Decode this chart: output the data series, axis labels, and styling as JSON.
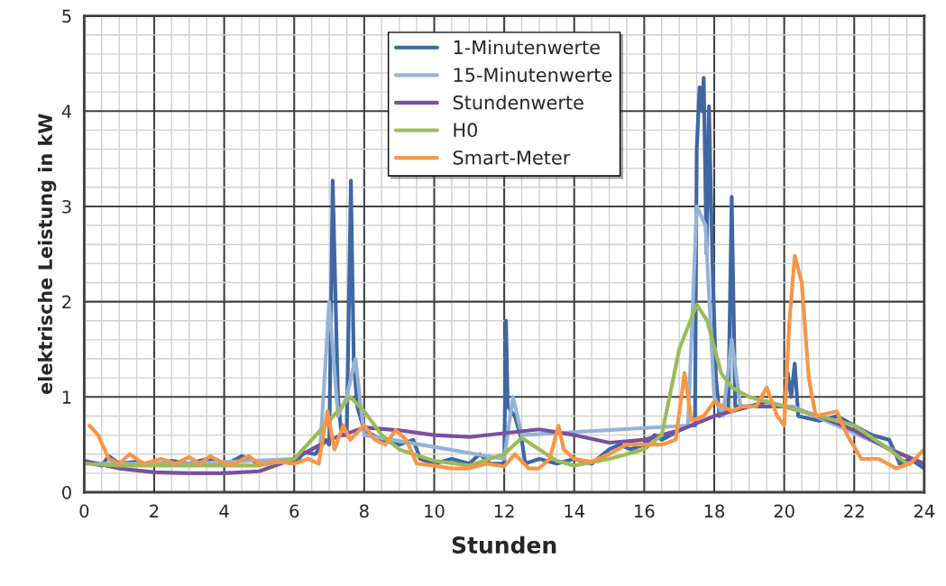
{
  "chart_data": {
    "type": "line",
    "xlabel": "Stunden",
    "ylabel": "elektrische Leistung in kW",
    "xlim": [
      0,
      24
    ],
    "ylim": [
      0,
      5
    ],
    "xticks": [
      0,
      2,
      4,
      6,
      8,
      10,
      12,
      14,
      16,
      18,
      20,
      22,
      24
    ],
    "yticks": [
      0,
      1,
      2,
      3,
      4,
      5
    ],
    "grid": true,
    "legend": "top",
    "line_style": "solid",
    "marker": "none",
    "series": [
      {
        "name": "1-Minutenwerte",
        "color": "#3f67a3",
        "x": [
          0.2,
          0.5,
          0.7,
          1.0,
          1.5,
          2.0,
          2.5,
          3.0,
          3.5,
          4.0,
          4.5,
          5.0,
          5.5,
          6.0,
          6.3,
          6.6,
          6.9,
          7.0,
          7.1,
          7.15,
          7.25,
          7.35,
          7.5,
          7.62,
          7.7,
          7.8,
          8.0,
          8.5,
          9.0,
          9.4,
          9.6,
          10.0,
          10.5,
          11.0,
          11.3,
          11.6,
          12.0,
          12.05,
          12.1,
          12.3,
          12.5,
          12.6,
          13.0,
          13.5,
          14.0,
          14.5,
          15.0,
          15.3,
          15.6,
          16.0,
          16.3,
          16.5,
          17.0,
          17.3,
          17.45,
          17.5,
          17.58,
          17.65,
          17.7,
          17.78,
          17.85,
          17.95,
          18.05,
          18.15,
          18.4,
          18.5,
          18.6,
          19.0,
          19.5,
          20.0,
          20.1,
          20.2,
          20.3,
          20.4,
          21.0,
          21.5,
          22.0,
          22.5,
          23.0,
          23.3,
          23.6,
          24.0
        ],
        "values": [
          0.3,
          0.28,
          0.38,
          0.3,
          0.32,
          0.28,
          0.33,
          0.3,
          0.35,
          0.28,
          0.38,
          0.3,
          0.33,
          0.3,
          0.42,
          0.4,
          0.55,
          0.5,
          3.27,
          2.5,
          1.0,
          0.6,
          0.6,
          3.27,
          1.4,
          0.9,
          0.65,
          0.55,
          0.5,
          0.55,
          0.35,
          0.3,
          0.35,
          0.3,
          0.4,
          0.3,
          0.3,
          1.8,
          0.9,
          0.8,
          0.55,
          0.3,
          0.35,
          0.3,
          0.35,
          0.3,
          0.45,
          0.5,
          0.45,
          0.5,
          0.6,
          0.55,
          0.65,
          0.7,
          0.7,
          3.6,
          4.25,
          4.0,
          4.35,
          2.5,
          4.05,
          2.4,
          1.2,
          0.8,
          0.85,
          3.1,
          0.9,
          0.9,
          0.95,
          0.9,
          1.25,
          1.0,
          1.35,
          0.8,
          0.75,
          0.8,
          0.7,
          0.6,
          0.55,
          0.3,
          0.35,
          0.25
        ]
      },
      {
        "name": "15-Minutenwerte",
        "color": "#95b3d7",
        "x": [
          0.25,
          3.0,
          6.0,
          6.75,
          7.0,
          7.25,
          7.5,
          7.75,
          8.0,
          12.0,
          12.25,
          12.5,
          17.25,
          17.5,
          17.75,
          18.0,
          18.25,
          18.5,
          18.75,
          20.25,
          24.0
        ],
        "values": [
          0.3,
          0.3,
          0.35,
          0.5,
          2.0,
          0.8,
          1.0,
          1.4,
          0.6,
          0.35,
          1.0,
          0.6,
          0.7,
          3.0,
          2.8,
          1.0,
          0.8,
          1.6,
          0.9,
          0.9,
          0.3
        ]
      },
      {
        "name": "Stundenwerte",
        "color": "#7851a0",
        "x": [
          0,
          1,
          2,
          3,
          4,
          5,
          6,
          7,
          8,
          9,
          10,
          11,
          12,
          13,
          14,
          15,
          16,
          17,
          18,
          19,
          20,
          21,
          22,
          23,
          24
        ],
        "values": [
          0.33,
          0.25,
          0.21,
          0.2,
          0.2,
          0.22,
          0.35,
          0.55,
          0.68,
          0.65,
          0.6,
          0.58,
          0.62,
          0.66,
          0.6,
          0.52,
          0.55,
          0.65,
          0.8,
          0.9,
          0.9,
          0.8,
          0.65,
          0.45,
          0.3
        ]
      },
      {
        "name": "H0",
        "color": "#9bbb59",
        "x": [
          0,
          1,
          2,
          3,
          4,
          5,
          6,
          7,
          7.6,
          8,
          8.5,
          9,
          10,
          11,
          12,
          12.5,
          13,
          13.5,
          14,
          15,
          16,
          16.5,
          17,
          17.5,
          17.8,
          18.2,
          18.5,
          19,
          20,
          21,
          22,
          23,
          23.5
        ],
        "values": [
          0.3,
          0.28,
          0.28,
          0.28,
          0.28,
          0.28,
          0.35,
          0.75,
          1.0,
          0.85,
          0.6,
          0.45,
          0.33,
          0.28,
          0.4,
          0.57,
          0.45,
          0.33,
          0.28,
          0.35,
          0.45,
          0.6,
          1.5,
          1.97,
          1.8,
          1.25,
          1.1,
          1.0,
          0.9,
          0.8,
          0.7,
          0.45,
          0.3
        ]
      },
      {
        "name": "Smart-Meter",
        "color": "#f79646",
        "x": [
          0.15,
          0.4,
          0.7,
          1.0,
          1.3,
          1.7,
          2.2,
          2.6,
          3.0,
          3.3,
          3.6,
          4.0,
          4.3,
          4.7,
          5.0,
          5.5,
          6.0,
          6.4,
          6.7,
          6.95,
          7.15,
          7.4,
          7.6,
          8.0,
          8.3,
          8.6,
          8.9,
          9.2,
          9.5,
          10,
          10.5,
          11.0,
          11.5,
          12.0,
          12.3,
          12.7,
          13.0,
          13.3,
          13.55,
          13.7,
          14,
          14.5,
          15,
          15.5,
          16,
          16.5,
          16.9,
          17.15,
          17.35,
          17.7,
          18.0,
          18.5,
          18.8,
          19.2,
          19.5,
          19.8,
          20.0,
          20.15,
          20.3,
          20.5,
          20.7,
          20.9,
          21.5,
          21.8,
          22.2,
          22.7,
          23.2,
          23.6,
          24
        ],
        "values": [
          0.7,
          0.6,
          0.35,
          0.3,
          0.4,
          0.3,
          0.35,
          0.3,
          0.37,
          0.3,
          0.38,
          0.3,
          0.3,
          0.38,
          0.3,
          0.32,
          0.3,
          0.35,
          0.3,
          0.85,
          0.45,
          0.7,
          0.55,
          0.7,
          0.55,
          0.5,
          0.65,
          0.55,
          0.3,
          0.28,
          0.25,
          0.25,
          0.3,
          0.27,
          0.4,
          0.25,
          0.25,
          0.35,
          0.7,
          0.45,
          0.35,
          0.32,
          0.4,
          0.5,
          0.5,
          0.5,
          0.55,
          1.25,
          0.75,
          0.8,
          0.95,
          0.85,
          0.9,
          0.9,
          1.1,
          0.8,
          0.7,
          1.8,
          2.48,
          2.2,
          1.2,
          0.8,
          0.85,
          0.6,
          0.35,
          0.35,
          0.25,
          0.3,
          0.45
        ]
      }
    ]
  }
}
